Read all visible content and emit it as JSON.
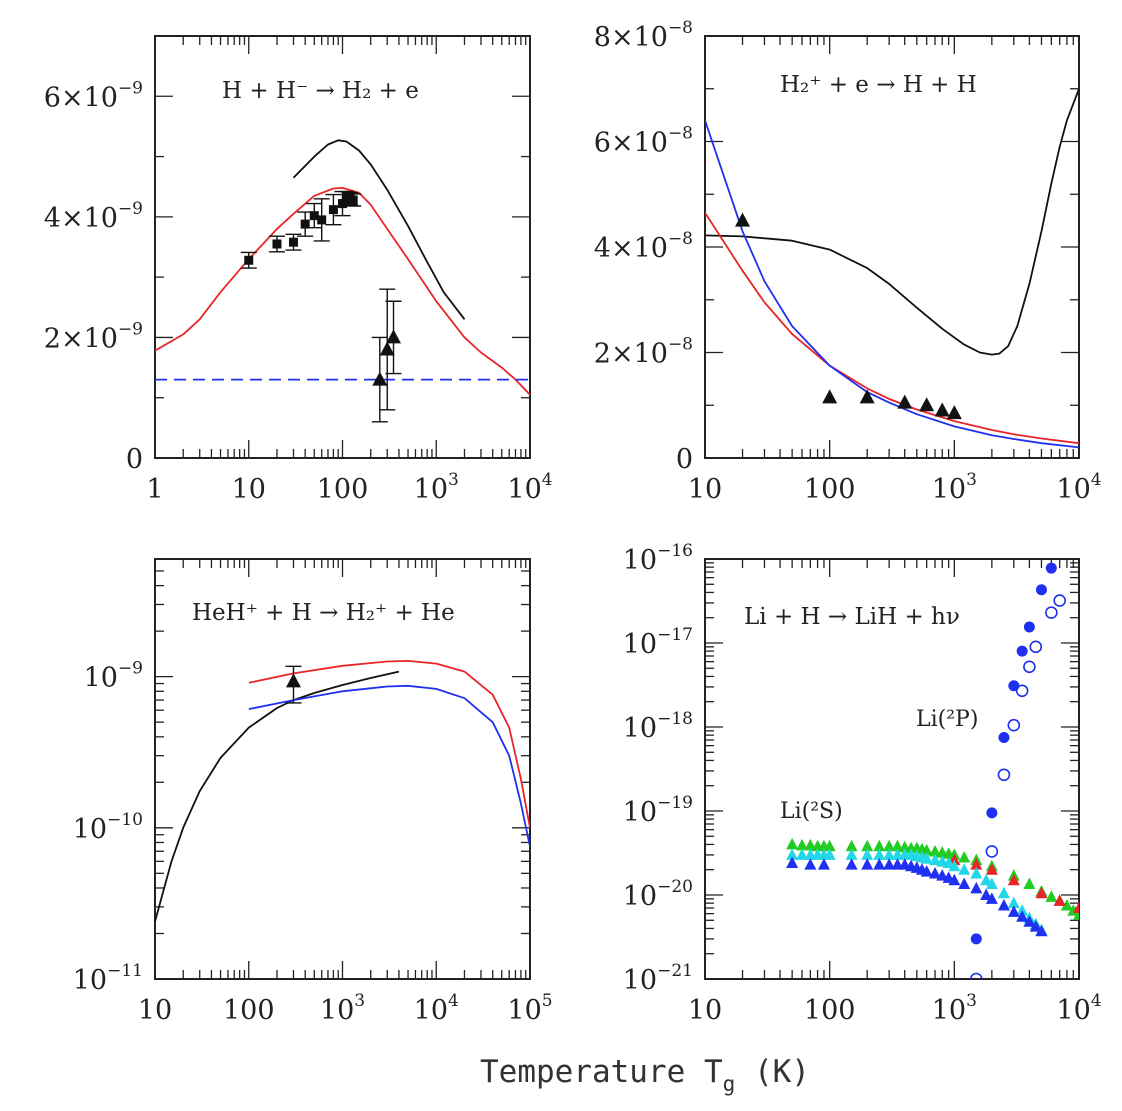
{
  "figure": {
    "xlabel_main": "Temperature T",
    "xlabel_sub": "g",
    "xlabel_unit": " (K)"
  },
  "colors": {
    "black": "#111111",
    "red": "#e8262a",
    "blue": "#2030f0",
    "green": "#22cc22",
    "cyan": "#22d8e8"
  },
  "chart_data": [
    {
      "type": "line",
      "title": "H + H⁻ → H₂ + e",
      "xscale": "log",
      "xlim": [
        1,
        10000
      ],
      "yscale": "linear",
      "ylim": [
        0,
        7e-09
      ],
      "xticks": [
        {
          "v": 1,
          "base": "1",
          "exp": ""
        },
        {
          "v": 10,
          "base": "10",
          "exp": ""
        },
        {
          "v": 100,
          "base": "100",
          "exp": ""
        },
        {
          "v": 1000,
          "base": "10",
          "exp": "3"
        },
        {
          "v": 10000,
          "base": "10",
          "exp": "4"
        }
      ],
      "yticks": [
        {
          "v": 0,
          "base": "0",
          "exp": ""
        },
        {
          "v": 2e-09,
          "base": "2×10",
          "exp": "−9"
        },
        {
          "v": 4e-09,
          "base": "4×10",
          "exp": "−9"
        },
        {
          "v": 6e-09,
          "base": "6×10",
          "exp": "−9"
        }
      ],
      "yminor": [
        1e-09,
        3e-09,
        5e-09,
        7e-09
      ],
      "series": [
        {
          "name": "black curve",
          "color": "black",
          "dash": false,
          "x": [
            30,
            50,
            70,
            90,
            110,
            150,
            200,
            300,
            500,
            800,
            1200,
            2000
          ],
          "y": [
            4.65e-09,
            5e-09,
            5.2e-09,
            5.27e-09,
            5.25e-09,
            5.1e-09,
            4.87e-09,
            4.45e-09,
            3.85e-09,
            3.25e-09,
            2.75e-09,
            2.3e-09
          ]
        },
        {
          "name": "red curve",
          "color": "red",
          "dash": false,
          "x": [
            1,
            2,
            3,
            5,
            10,
            20,
            30,
            50,
            80,
            100,
            150,
            200,
            300,
            500,
            1000,
            2000,
            3000,
            5000,
            7000,
            10000
          ],
          "y": [
            1.78e-09,
            2.05e-09,
            2.3e-09,
            2.75e-09,
            3.3e-09,
            3.8e-09,
            4.05e-09,
            4.35e-09,
            4.47e-09,
            4.48e-09,
            4.4e-09,
            4.2e-09,
            3.8e-09,
            3.3e-09,
            2.6e-09,
            2e-09,
            1.75e-09,
            1.5e-09,
            1.3e-09,
            1.05e-09
          ]
        },
        {
          "name": "blue dashed",
          "color": "blue",
          "dash": true,
          "x": [
            1,
            10000
          ],
          "y": [
            1.3e-09,
            1.3e-09
          ]
        }
      ],
      "points": [
        {
          "marker": "square",
          "x": 10,
          "y": 3.28e-09,
          "err": 1.3e-10
        },
        {
          "marker": "square",
          "x": 20,
          "y": 3.55e-09,
          "err": 1.3e-10
        },
        {
          "marker": "square",
          "x": 30,
          "y": 3.58e-09,
          "err": 1.3e-10
        },
        {
          "marker": "square",
          "x": 40,
          "y": 3.88e-09,
          "err": 2e-10
        },
        {
          "marker": "square",
          "x": 50,
          "y": 4.02e-09,
          "err": 2e-10
        },
        {
          "marker": "square",
          "x": 60,
          "y": 3.95e-09,
          "err": 3.5e-10
        },
        {
          "marker": "square",
          "x": 80,
          "y": 4.12e-09,
          "err": 2.5e-10
        },
        {
          "marker": "square",
          "x": 100,
          "y": 4.22e-09,
          "err": 2e-10
        },
        {
          "marker": "square",
          "x": 110,
          "y": 4.32e-09,
          "err": 1e-10
        },
        {
          "marker": "square",
          "x": 120,
          "y": 4.3e-09,
          "err": 1e-10
        },
        {
          "marker": "square",
          "x": 130,
          "y": 4.28e-09,
          "err": 1e-10
        },
        {
          "marker": "triangle",
          "x": 250,
          "y": 1.3e-09,
          "err": 7e-10
        },
        {
          "marker": "triangle",
          "x": 300,
          "y": 1.8e-09,
          "err": 1e-09
        },
        {
          "marker": "triangle",
          "x": 350,
          "y": 2e-09,
          "err": 6e-10
        }
      ]
    },
    {
      "type": "line",
      "title": "H₂⁺ + e → H + H",
      "xscale": "log",
      "xlim": [
        10,
        10000
      ],
      "yscale": "linear",
      "ylim": [
        0,
        8e-08
      ],
      "xticks": [
        {
          "v": 10,
          "base": "10",
          "exp": ""
        },
        {
          "v": 100,
          "base": "100",
          "exp": ""
        },
        {
          "v": 1000,
          "base": "10",
          "exp": "3"
        },
        {
          "v": 10000,
          "base": "10",
          "exp": "4"
        }
      ],
      "yticks": [
        {
          "v": 0,
          "base": "0",
          "exp": ""
        },
        {
          "v": 2e-08,
          "base": "2×10",
          "exp": "−8"
        },
        {
          "v": 4e-08,
          "base": "4×10",
          "exp": "−8"
        },
        {
          "v": 6e-08,
          "base": "6×10",
          "exp": "−8"
        },
        {
          "v": 8e-08,
          "base": "8×10",
          "exp": "−8"
        }
      ],
      "yminor": [
        1e-08,
        3e-08,
        5e-08,
        7e-08
      ],
      "series": [
        {
          "name": "black curve",
          "color": "black",
          "dash": false,
          "x": [
            10,
            20,
            50,
            100,
            200,
            300,
            500,
            800,
            1200,
            1600,
            2000,
            2300,
            2700,
            3200,
            4000,
            5000,
            6000,
            7000,
            8000,
            10000
          ],
          "y": [
            4.22e-08,
            4.2e-08,
            4.12e-08,
            3.95e-08,
            3.6e-08,
            3.3e-08,
            2.85e-08,
            2.45e-08,
            2.15e-08,
            2e-08,
            1.96e-08,
            1.98e-08,
            2.12e-08,
            2.5e-08,
            3.3e-08,
            4.3e-08,
            5.2e-08,
            5.9e-08,
            6.4e-08,
            7e-08
          ]
        },
        {
          "name": "red curve",
          "color": "red",
          "dash": false,
          "x": [
            10,
            20,
            30,
            50,
            100,
            200,
            300,
            500,
            1000,
            2000,
            3000,
            5000,
            10000
          ],
          "y": [
            4.65e-08,
            3.55e-08,
            2.95e-08,
            2.35e-08,
            1.75e-08,
            1.32e-08,
            1.12e-08,
            9.2e-09,
            7e-09,
            5.3e-09,
            4.5e-09,
            3.7e-09,
            2.8e-09
          ]
        },
        {
          "name": "blue curve",
          "color": "blue",
          "dash": false,
          "x": [
            10,
            20,
            30,
            50,
            100,
            200,
            300,
            500,
            1000,
            2000,
            3000,
            5000,
            10000
          ],
          "y": [
            6.4e-08,
            4.3e-08,
            3.35e-08,
            2.5e-08,
            1.75e-08,
            1.25e-08,
            1.05e-08,
            8.3e-09,
            6e-09,
            4.3e-09,
            3.6e-09,
            2.8e-09,
            2e-09
          ]
        }
      ],
      "points": [
        {
          "marker": "triangle",
          "x": 20,
          "y": 4.5e-08
        },
        {
          "marker": "triangle",
          "x": 100,
          "y": 1.15e-08
        },
        {
          "marker": "triangle",
          "x": 200,
          "y": 1.15e-08
        },
        {
          "marker": "triangle",
          "x": 400,
          "y": 1.05e-08
        },
        {
          "marker": "triangle",
          "x": 600,
          "y": 1e-08
        },
        {
          "marker": "triangle",
          "x": 800,
          "y": 9e-09
        },
        {
          "marker": "triangle",
          "x": 1000,
          "y": 8.5e-09
        }
      ]
    },
    {
      "type": "line",
      "title": "HeH⁺ + H → H₂⁺ + He",
      "xscale": "log",
      "xlim": [
        10,
        100000
      ],
      "yscale": "log",
      "ylim": [
        1e-11,
        6e-09
      ],
      "xticks": [
        {
          "v": 10,
          "base": "10",
          "exp": ""
        },
        {
          "v": 100,
          "base": "100",
          "exp": ""
        },
        {
          "v": 1000,
          "base": "10",
          "exp": "3"
        },
        {
          "v": 10000,
          "base": "10",
          "exp": "4"
        },
        {
          "v": 100000,
          "base": "10",
          "exp": "5"
        }
      ],
      "yticks": [
        {
          "v": 1e-11,
          "base": "10",
          "exp": "−11"
        },
        {
          "v": 1e-10,
          "base": "10",
          "exp": "−10"
        },
        {
          "v": 1e-09,
          "base": "10",
          "exp": "−9"
        }
      ],
      "series": [
        {
          "name": "black curve",
          "color": "black",
          "dash": false,
          "x": [
            10,
            15,
            20,
            30,
            50,
            100,
            200,
            300,
            500,
            1000,
            2000,
            4000
          ],
          "y": [
            2.4e-11,
            6e-11,
            1e-10,
            1.75e-10,
            2.9e-10,
            4.6e-10,
            6.2e-10,
            7e-10,
            7.8e-10,
            8.8e-10,
            9.8e-10,
            1.08e-09
          ]
        },
        {
          "name": "red curve",
          "color": "red",
          "dash": false,
          "x": [
            100,
            300,
            1000,
            3000,
            5000,
            10000,
            20000,
            40000,
            60000,
            80000,
            100000
          ],
          "y": [
            9.1e-10,
            1.05e-09,
            1.18e-09,
            1.26e-09,
            1.27e-09,
            1.22e-09,
            1.08e-09,
            7.6e-10,
            4.6e-10,
            2.1e-10,
            1e-10
          ]
        },
        {
          "name": "blue curve",
          "color": "blue",
          "dash": false,
          "x": [
            100,
            300,
            1000,
            3000,
            5000,
            10000,
            20000,
            40000,
            60000,
            80000,
            100000
          ],
          "y": [
            6.1e-10,
            7e-10,
            8e-10,
            8.6e-10,
            8.7e-10,
            8.3e-10,
            7.2e-10,
            5e-10,
            3e-10,
            1.45e-10,
            7.5e-11
          ]
        }
      ],
      "points": [
        {
          "marker": "triangle",
          "x": 300,
          "y": 9.3e-10,
          "errlo": 6.7e-10,
          "errhi": 1.17e-09
        }
      ]
    },
    {
      "type": "scatter",
      "title": "Li + H → LiH + hν",
      "xscale": "log",
      "xlim": [
        10,
        10000
      ],
      "yscale": "log",
      "ylim": [
        1e-21,
        1e-16
      ],
      "xticks": [
        {
          "v": 10,
          "base": "10",
          "exp": ""
        },
        {
          "v": 100,
          "base": "100",
          "exp": ""
        },
        {
          "v": 1000,
          "base": "10",
          "exp": "3"
        },
        {
          "v": 10000,
          "base": "10",
          "exp": "4"
        }
      ],
      "yticks": [
        {
          "v": 1e-21,
          "base": "10",
          "exp": "−21"
        },
        {
          "v": 1e-20,
          "base": "10",
          "exp": "−20"
        },
        {
          "v": 1e-19,
          "base": "10",
          "exp": "−19"
        },
        {
          "v": 1e-18,
          "base": "10",
          "exp": "−18"
        },
        {
          "v": 1e-17,
          "base": "10",
          "exp": "−17"
        },
        {
          "v": 1e-16,
          "base": "10",
          "exp": "−16"
        }
      ],
      "annotations": [
        "Li(²P)",
        "Li(²S)"
      ],
      "series": [
        {
          "name": "Li(2P) filled",
          "marker": "circle-filled",
          "color": "blue",
          "x": [
            1500,
            2000,
            2500,
            3000,
            3500,
            4000,
            5000,
            6000
          ],
          "y": [
            3e-21,
            9.5e-20,
            7.5e-19,
            3.1e-18,
            8e-18,
            1.55e-17,
            4.3e-17,
            7.8e-17
          ]
        },
        {
          "name": "Li(2P) open",
          "marker": "circle-open",
          "color": "blue",
          "x": [
            1500,
            2000,
            2500,
            3000,
            3500,
            4000,
            4500,
            6000,
            7000
          ],
          "y": [
            1e-21,
            3.3e-20,
            2.7e-19,
            1.05e-18,
            2.7e-18,
            5.2e-18,
            9e-18,
            2.3e-17,
            3.2e-17
          ]
        },
        {
          "name": "Li(2S) green",
          "marker": "triangle",
          "color": "green",
          "x": [
            50,
            60,
            70,
            80,
            90,
            100,
            150,
            200,
            250,
            300,
            350,
            400,
            450,
            500,
            550,
            600,
            700,
            800,
            900,
            1000,
            1200,
            1500,
            2000,
            3000,
            4000,
            5000,
            6000,
            7000,
            8000,
            9000,
            10000
          ],
          "y": [
            4e-20,
            3.9e-20,
            3.9e-20,
            3.8e-20,
            3.8e-20,
            3.8e-20,
            3.8e-20,
            3.8e-20,
            3.8e-20,
            3.8e-20,
            3.8e-20,
            3.7e-20,
            3.6e-20,
            3.6e-20,
            3.5e-20,
            3.4e-20,
            3.3e-20,
            3.2e-20,
            3.1e-20,
            3e-20,
            2.8e-20,
            2.6e-20,
            2.2e-20,
            1.7e-20,
            1.35e-20,
            1.1e-20,
            9.5e-21,
            8.5e-21,
            7.5e-21,
            6.5e-21,
            5.8e-21
          ]
        },
        {
          "name": "Li(2S) red",
          "marker": "triangle",
          "color": "red",
          "x": [
            1000,
            1500,
            2000,
            3000,
            5000,
            7000,
            10000
          ],
          "y": [
            2.6e-20,
            2.3e-20,
            2e-20,
            1.5e-20,
            1.05e-20,
            8.5e-21,
            7e-21
          ]
        },
        {
          "name": "Li(2S) cyan",
          "marker": "triangle",
          "color": "cyan",
          "x": [
            50,
            60,
            70,
            80,
            90,
            100,
            150,
            200,
            250,
            300,
            350,
            400,
            450,
            500,
            550,
            600,
            700,
            800,
            900,
            1000,
            1200,
            1500,
            1800,
            2000,
            2500,
            3000,
            3500,
            4000,
            4500,
            5000
          ],
          "y": [
            3e-20,
            3e-20,
            3e-20,
            3e-20,
            3e-20,
            3e-20,
            3e-20,
            3e-20,
            3e-20,
            3e-20,
            3e-20,
            3e-20,
            3e-20,
            2.9e-20,
            2.8e-20,
            2.7e-20,
            2.6e-20,
            2.5e-20,
            2.4e-20,
            2.2e-20,
            2e-20,
            1.8e-20,
            1.5e-20,
            1.35e-20,
            1.05e-20,
            8e-21,
            6.5e-21,
            5.3e-21,
            4.5e-21,
            3.8e-21
          ]
        },
        {
          "name": "Li(2S) blue",
          "marker": "triangle",
          "color": "blue",
          "x": [
            50,
            70,
            90,
            150,
            200,
            250,
            300,
            350,
            400,
            450,
            500,
            550,
            600,
            700,
            800,
            900,
            1000,
            1200,
            1500,
            1800,
            2000,
            2500,
            3000,
            3500,
            4000,
            4500,
            5000
          ],
          "y": [
            2.4e-20,
            2.3e-20,
            2.3e-20,
            2.3e-20,
            2.3e-20,
            2.3e-20,
            2.3e-20,
            2.3e-20,
            2.3e-20,
            2.2e-20,
            2.1e-20,
            2e-20,
            1.9e-20,
            1.8e-20,
            1.7e-20,
            1.6e-20,
            1.5e-20,
            1.35e-20,
            1.2e-20,
            1e-20,
            9e-21,
            7.5e-21,
            6.3e-21,
            5.5e-21,
            4.8e-21,
            4.2e-21,
            3.7e-21
          ]
        }
      ]
    }
  ]
}
